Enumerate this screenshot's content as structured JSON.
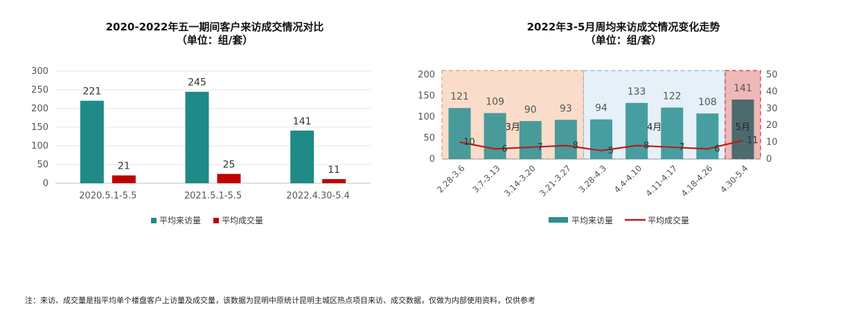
{
  "chart_data": [
    {
      "type": "bar",
      "title": "2020-2022年五一期间客户来访成交情况对比",
      "subtitle": "（单位：组/套）",
      "categories": [
        "2020.5.1-5.5",
        "2021.5.1-5.5",
        "2022.4.30-5.4"
      ],
      "series": [
        {
          "name": "平均来访量",
          "values": [
            221,
            245,
            141
          ],
          "color": "#1f8a87"
        },
        {
          "name": "平均成交量",
          "values": [
            21,
            25,
            11
          ],
          "color": "#c00000"
        }
      ],
      "ylim": [
        0,
        300
      ],
      "yticks": [
        0,
        50,
        100,
        150,
        200,
        250,
        300
      ],
      "grid": true,
      "legend": "bottom"
    },
    {
      "type": "bar+line",
      "title": "2022年3-5月周均来访成交情况变化走势",
      "subtitle": "（单位：组/套）",
      "categories": [
        "2.28-3.6",
        "3.7-3.13",
        "3.14-3.20",
        "3.21-3.27",
        "3.28-4.3",
        "4.4-4.10",
        "4.11-4.17",
        "4.18-4.26",
        "4.30-5.4"
      ],
      "series": [
        {
          "name": "平均来访量",
          "type": "bar",
          "axis": "left",
          "values": [
            121,
            109,
            90,
            93,
            94,
            133,
            122,
            108,
            141
          ],
          "color": "#2a8f92"
        },
        {
          "name": "平均成交量",
          "type": "line",
          "axis": "right",
          "values": [
            10,
            6,
            7,
            8,
            5,
            8,
            7,
            6,
            11
          ],
          "color": "#b91c1c"
        }
      ],
      "ylim_left": [
        0,
        200
      ],
      "yticks_left": [
        0,
        50,
        100,
        150,
        200
      ],
      "ylim_right": [
        0,
        50
      ],
      "yticks_right": [
        0,
        10,
        20,
        30,
        40,
        50
      ],
      "periods": [
        {
          "label": "3月",
          "start": 0,
          "end": 3,
          "fill": "#f6cfb4",
          "border": "#e59a64"
        },
        {
          "label": "4月",
          "start": 4,
          "end": 7,
          "fill": "#dbe9f6",
          "border": "#8fb4d9"
        },
        {
          "label": "5月",
          "start": 8,
          "end": 8,
          "fill": "#e89a9a",
          "border": "#c0393b"
        }
      ],
      "legend": "bottom"
    }
  ],
  "footnote": "注：来访、成交量是指平均单个楼盘客户上访量及成交量，该数据为昆明中原统计昆明主城区热点项目来访、成交数据，仅做为内部使用资料，仅供参考"
}
